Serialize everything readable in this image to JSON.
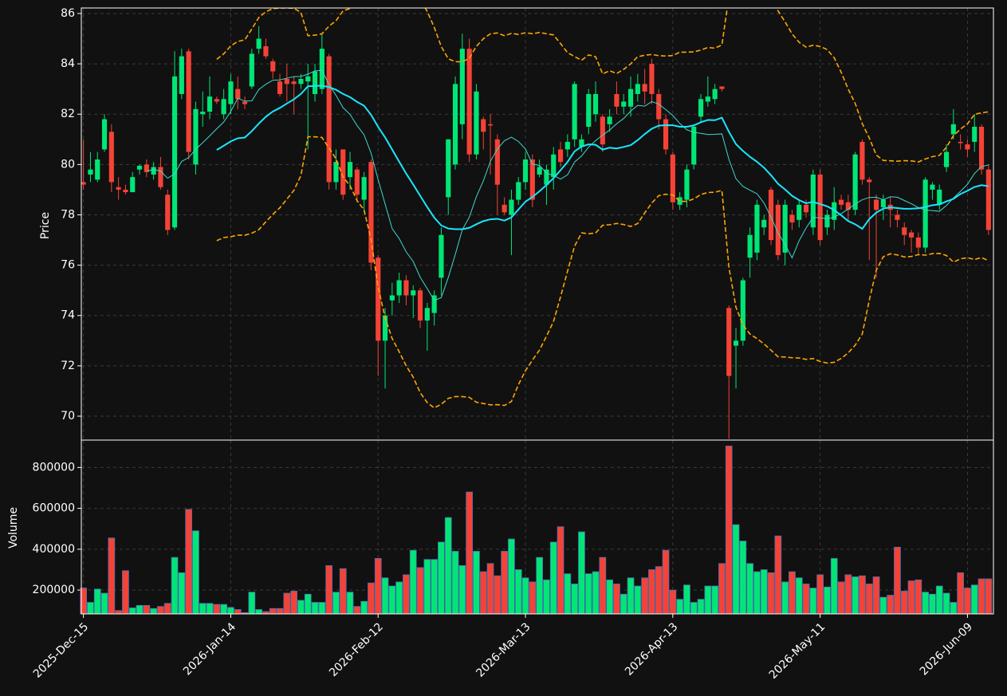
{
  "chart_data": {
    "type": "candlestick",
    "ylabel": "Price",
    "categories": [
      "2025-Dec-15",
      null,
      null,
      null,
      null,
      null,
      null,
      null,
      null,
      null,
      null,
      null,
      null,
      null,
      null,
      null,
      null,
      null,
      null,
      null,
      null,
      "2026-Jan-14",
      null,
      null,
      null,
      null,
      null,
      null,
      null,
      null,
      null,
      null,
      null,
      null,
      null,
      null,
      null,
      null,
      null,
      null,
      null,
      null,
      "2026-Feb-12",
      null,
      null,
      null,
      null,
      null,
      null,
      null,
      null,
      null,
      null,
      null,
      null,
      null,
      null,
      null,
      null,
      null,
      null,
      null,
      null,
      "2026-Mar-13",
      null,
      null,
      null,
      null,
      null,
      null,
      null,
      null,
      null,
      null,
      null,
      null,
      null,
      null,
      null,
      null,
      null,
      null,
      null,
      null,
      "2026-Apr-13",
      null,
      null,
      null,
      null,
      null,
      null,
      null,
      null,
      null,
      null,
      null,
      null,
      null,
      null,
      null,
      null,
      null,
      null,
      null,
      null,
      "2026-May-11",
      null,
      null,
      null,
      null,
      null,
      null,
      null,
      null,
      null,
      null,
      null,
      null,
      null,
      null,
      null,
      null,
      null,
      null,
      null,
      null,
      "2026-Jun-09",
      null,
      null,
      null
    ],
    "open": [
      79.3,
      79.6,
      79.4,
      80.6,
      81.3,
      79.1,
      79.0,
      78.9,
      79.8,
      80.0,
      79.6,
      79.9,
      78.8,
      77.5,
      82.8,
      84.5,
      80.0,
      82.0,
      82.1,
      82.6,
      82.0,
      82.4,
      83.0,
      82.5,
      83.1,
      84.6,
      84.7,
      84.1,
      83.3,
      83.4,
      83.3,
      83.2,
      83.3,
      82.8,
      83.0,
      84.3,
      79.3,
      80.6,
      79.5,
      79.8,
      78.6,
      80.1,
      76.3,
      73.0,
      74.6,
      74.8,
      75.4,
      74.8,
      75.0,
      73.8,
      74.1,
      75.5,
      78.7,
      80.0,
      81.6,
      84.6,
      80.4,
      81.8,
      81.6,
      81.0,
      78.4,
      78.0,
      78.6,
      79.3,
      80.2,
      79.6,
      79.2,
      79.5,
      80.6,
      80.6,
      81.0,
      80.7,
      81.5,
      82.0,
      81.9,
      81.6,
      82.8,
      82.3,
      82.3,
      82.8,
      83.2,
      84.0,
      82.8,
      81.8,
      80.4,
      78.4,
      78.6,
      80.0,
      81.9,
      82.5,
      82.6,
      83.1,
      74.3,
      72.8,
      73.0,
      76.3,
      76.5,
      77.5,
      79.0,
      78.4,
      76.5,
      78.0,
      77.8,
      78.4,
      77.5,
      79.6,
      77.5,
      77.8,
      78.6,
      78.5,
      78.2,
      80.9,
      79.4,
      78.6,
      78.3,
      78.4,
      78.0,
      77.5,
      77.3,
      77.1,
      76.7,
      79.0,
      78.4,
      79.9,
      81.2,
      80.9,
      80.8,
      80.9,
      81.5,
      79.8
    ],
    "high": [
      81.0,
      80.5,
      80.5,
      82.0,
      81.6,
      79.5,
      79.2,
      79.7,
      80.0,
      80.2,
      80.1,
      80.3,
      79.0,
      84.5,
      84.6,
      84.6,
      82.5,
      82.9,
      83.5,
      82.7,
      83.0,
      83.6,
      83.5,
      82.7,
      84.6,
      85.5,
      85.0,
      84.2,
      83.6,
      84.0,
      83.5,
      83.6,
      84.0,
      84.0,
      85.2,
      84.4,
      80.6,
      80.6,
      80.5,
      79.9,
      79.7,
      80.2,
      76.4,
      74.3,
      75.3,
      75.7,
      75.6,
      75.2,
      75.1,
      74.5,
      75.0,
      77.5,
      81.0,
      83.5,
      85.2,
      85.0,
      83.2,
      81.9,
      82.0,
      81.2,
      78.7,
      79.0,
      79.5,
      80.5,
      80.4,
      80.2,
      80.0,
      80.7,
      80.9,
      81.2,
      83.3,
      81.2,
      83.0,
      83.3,
      82.0,
      82.2,
      83.3,
      82.8,
      83.5,
      83.6,
      83.8,
      84.2,
      83.0,
      82.0,
      80.5,
      78.9,
      80.0,
      81.6,
      82.8,
      83.5,
      83.2,
      83.1,
      74.4,
      73.5,
      75.5,
      77.5,
      78.6,
      78.0,
      79.1,
      78.6,
      78.6,
      78.2,
      78.6,
      78.6,
      79.8,
      79.8,
      78.2,
      79.1,
      78.8,
      78.8,
      80.5,
      81.0,
      79.5,
      78.8,
      78.8,
      78.7,
      78.2,
      77.7,
      77.4,
      77.3,
      79.5,
      79.3,
      79.2,
      80.8,
      82.2,
      81.2,
      81.0,
      82.0,
      81.6,
      80.0
    ],
    "low": [
      79.0,
      79.3,
      79.3,
      80.5,
      78.9,
      78.6,
      78.8,
      78.9,
      79.6,
      79.5,
      79.4,
      79.0,
      77.2,
      77.4,
      82.6,
      80.2,
      79.6,
      81.5,
      81.8,
      82.4,
      81.8,
      82.0,
      82.2,
      82.2,
      83.0,
      84.4,
      84.2,
      83.4,
      82.7,
      82.5,
      82.0,
      83.0,
      80.6,
      82.5,
      82.8,
      79.0,
      79.0,
      78.6,
      79.0,
      78.5,
      78.1,
      75.8,
      71.6,
      71.1,
      74.0,
      74.5,
      74.4,
      73.9,
      73.5,
      72.6,
      73.6,
      74.8,
      78.0,
      79.8,
      81.0,
      80.1,
      80.2,
      80.6,
      79.6,
      78.0,
      78.0,
      76.4,
      78.4,
      79.0,
      78.3,
      79.5,
      78.4,
      79.0,
      79.9,
      80.3,
      80.7,
      80.5,
      81.2,
      81.7,
      80.5,
      81.3,
      82.0,
      82.0,
      81.9,
      82.5,
      82.4,
      82.4,
      81.4,
      80.4,
      78.2,
      78.2,
      78.3,
      79.8,
      81.7,
      82.3,
      82.4,
      82.9,
      69.1,
      71.1,
      72.8,
      75.5,
      76.2,
      77.2,
      76.8,
      76.2,
      76.0,
      77.4,
      77.5,
      77.9,
      77.2,
      76.8,
      77.2,
      77.4,
      78.2,
      77.8,
      78.0,
      79.2,
      76.2,
      75.5,
      77.8,
      77.5,
      77.5,
      76.8,
      76.5,
      76.4,
      76.5,
      78.6,
      78.2,
      79.7,
      81.0,
      80.6,
      80.3,
      80.5,
      79.6,
      77.2
    ],
    "close": [
      79.2,
      79.8,
      80.2,
      81.8,
      79.3,
      79.0,
      78.9,
      79.5,
      79.95,
      79.7,
      79.9,
      79.1,
      77.4,
      83.5,
      84.3,
      80.5,
      82.2,
      82.1,
      82.7,
      82.5,
      82.6,
      83.3,
      82.6,
      82.4,
      84.4,
      85.0,
      84.3,
      83.7,
      82.8,
      83.2,
      83.2,
      83.4,
      83.5,
      83.7,
      84.6,
      79.3,
      80.1,
      78.8,
      80.1,
      78.8,
      79.5,
      76.1,
      73.0,
      74.0,
      74.8,
      75.4,
      74.8,
      75.0,
      73.8,
      74.3,
      74.8,
      77.2,
      81.0,
      83.2,
      84.6,
      80.4,
      82.9,
      81.3,
      81.55,
      79.2,
      78.1,
      78.6,
      79.3,
      80.2,
      78.6,
      79.9,
      79.8,
      80.4,
      80.1,
      80.9,
      83.2,
      81.0,
      82.8,
      82.8,
      80.8,
      81.9,
      82.3,
      82.5,
      83.0,
      83.2,
      82.9,
      82.8,
      81.8,
      80.6,
      78.5,
      78.7,
      79.8,
      81.5,
      82.6,
      82.7,
      83.0,
      83.0,
      71.6,
      73.0,
      75.4,
      77.2,
      78.4,
      77.8,
      77.0,
      76.4,
      78.4,
      77.7,
      78.4,
      78.1,
      79.6,
      77.0,
      78.0,
      78.5,
      78.4,
      78.2,
      80.4,
      79.4,
      79.3,
      78.2,
      78.6,
      78.2,
      77.8,
      77.2,
      77.1,
      76.7,
      79.4,
      79.2,
      79.0,
      80.5,
      81.6,
      80.85,
      80.6,
      81.5,
      79.8,
      77.4
    ],
    "ylim": [
      69.05,
      86.22
    ],
    "yticks": [
      70,
      72,
      74,
      76,
      78,
      80,
      82,
      84,
      86
    ],
    "up_color": "#00e676",
    "down_color": "#f44336",
    "grid": true,
    "mav": [
      10,
      20
    ],
    "mav_colors": [
      "#3fd9d0",
      "#19e6ff"
    ],
    "bollinger": {
      "period": 20,
      "std": 2,
      "color": "#ffa500"
    },
    "volume": {
      "ylabel": "Volume",
      "values": [
        210000,
        140000,
        205000,
        185000,
        455000,
        100000,
        295000,
        113000,
        125000,
        125000,
        110000,
        120000,
        135000,
        360000,
        285000,
        595000,
        490000,
        135000,
        135000,
        130000,
        130000,
        115000,
        105000,
        90000,
        190000,
        105000,
        95000,
        110000,
        110000,
        185000,
        195000,
        150000,
        180000,
        140000,
        140000,
        320000,
        190000,
        305000,
        190000,
        120000,
        145000,
        235000,
        355000,
        260000,
        220000,
        240000,
        275000,
        395000,
        310000,
        350000,
        350000,
        435000,
        555000,
        390000,
        320000,
        680000,
        390000,
        290000,
        330000,
        270000,
        390000,
        450000,
        300000,
        260000,
        240000,
        360000,
        250000,
        435000,
        510000,
        280000,
        230000,
        485000,
        280000,
        290000,
        360000,
        250000,
        230000,
        180000,
        260000,
        220000,
        260000,
        300000,
        315000,
        395000,
        200000,
        155000,
        225000,
        140000,
        155000,
        220000,
        220000,
        330000,
        905000,
        520000,
        440000,
        330000,
        290000,
        300000,
        285000,
        465000,
        240000,
        290000,
        260000,
        230000,
        210000,
        275000,
        215000,
        355000,
        240000,
        275000,
        265000,
        270000,
        230000,
        265000,
        165000,
        175000,
        410000,
        195000,
        245000,
        250000,
        190000,
        180000,
        220000,
        185000,
        140000,
        285000,
        210000,
        225000,
        255000,
        255000
      ],
      "ylim": [
        83600,
        934000
      ],
      "yticks": [
        200000,
        400000,
        600000,
        800000
      ],
      "edge_color": "#4a6fb5"
    }
  }
}
